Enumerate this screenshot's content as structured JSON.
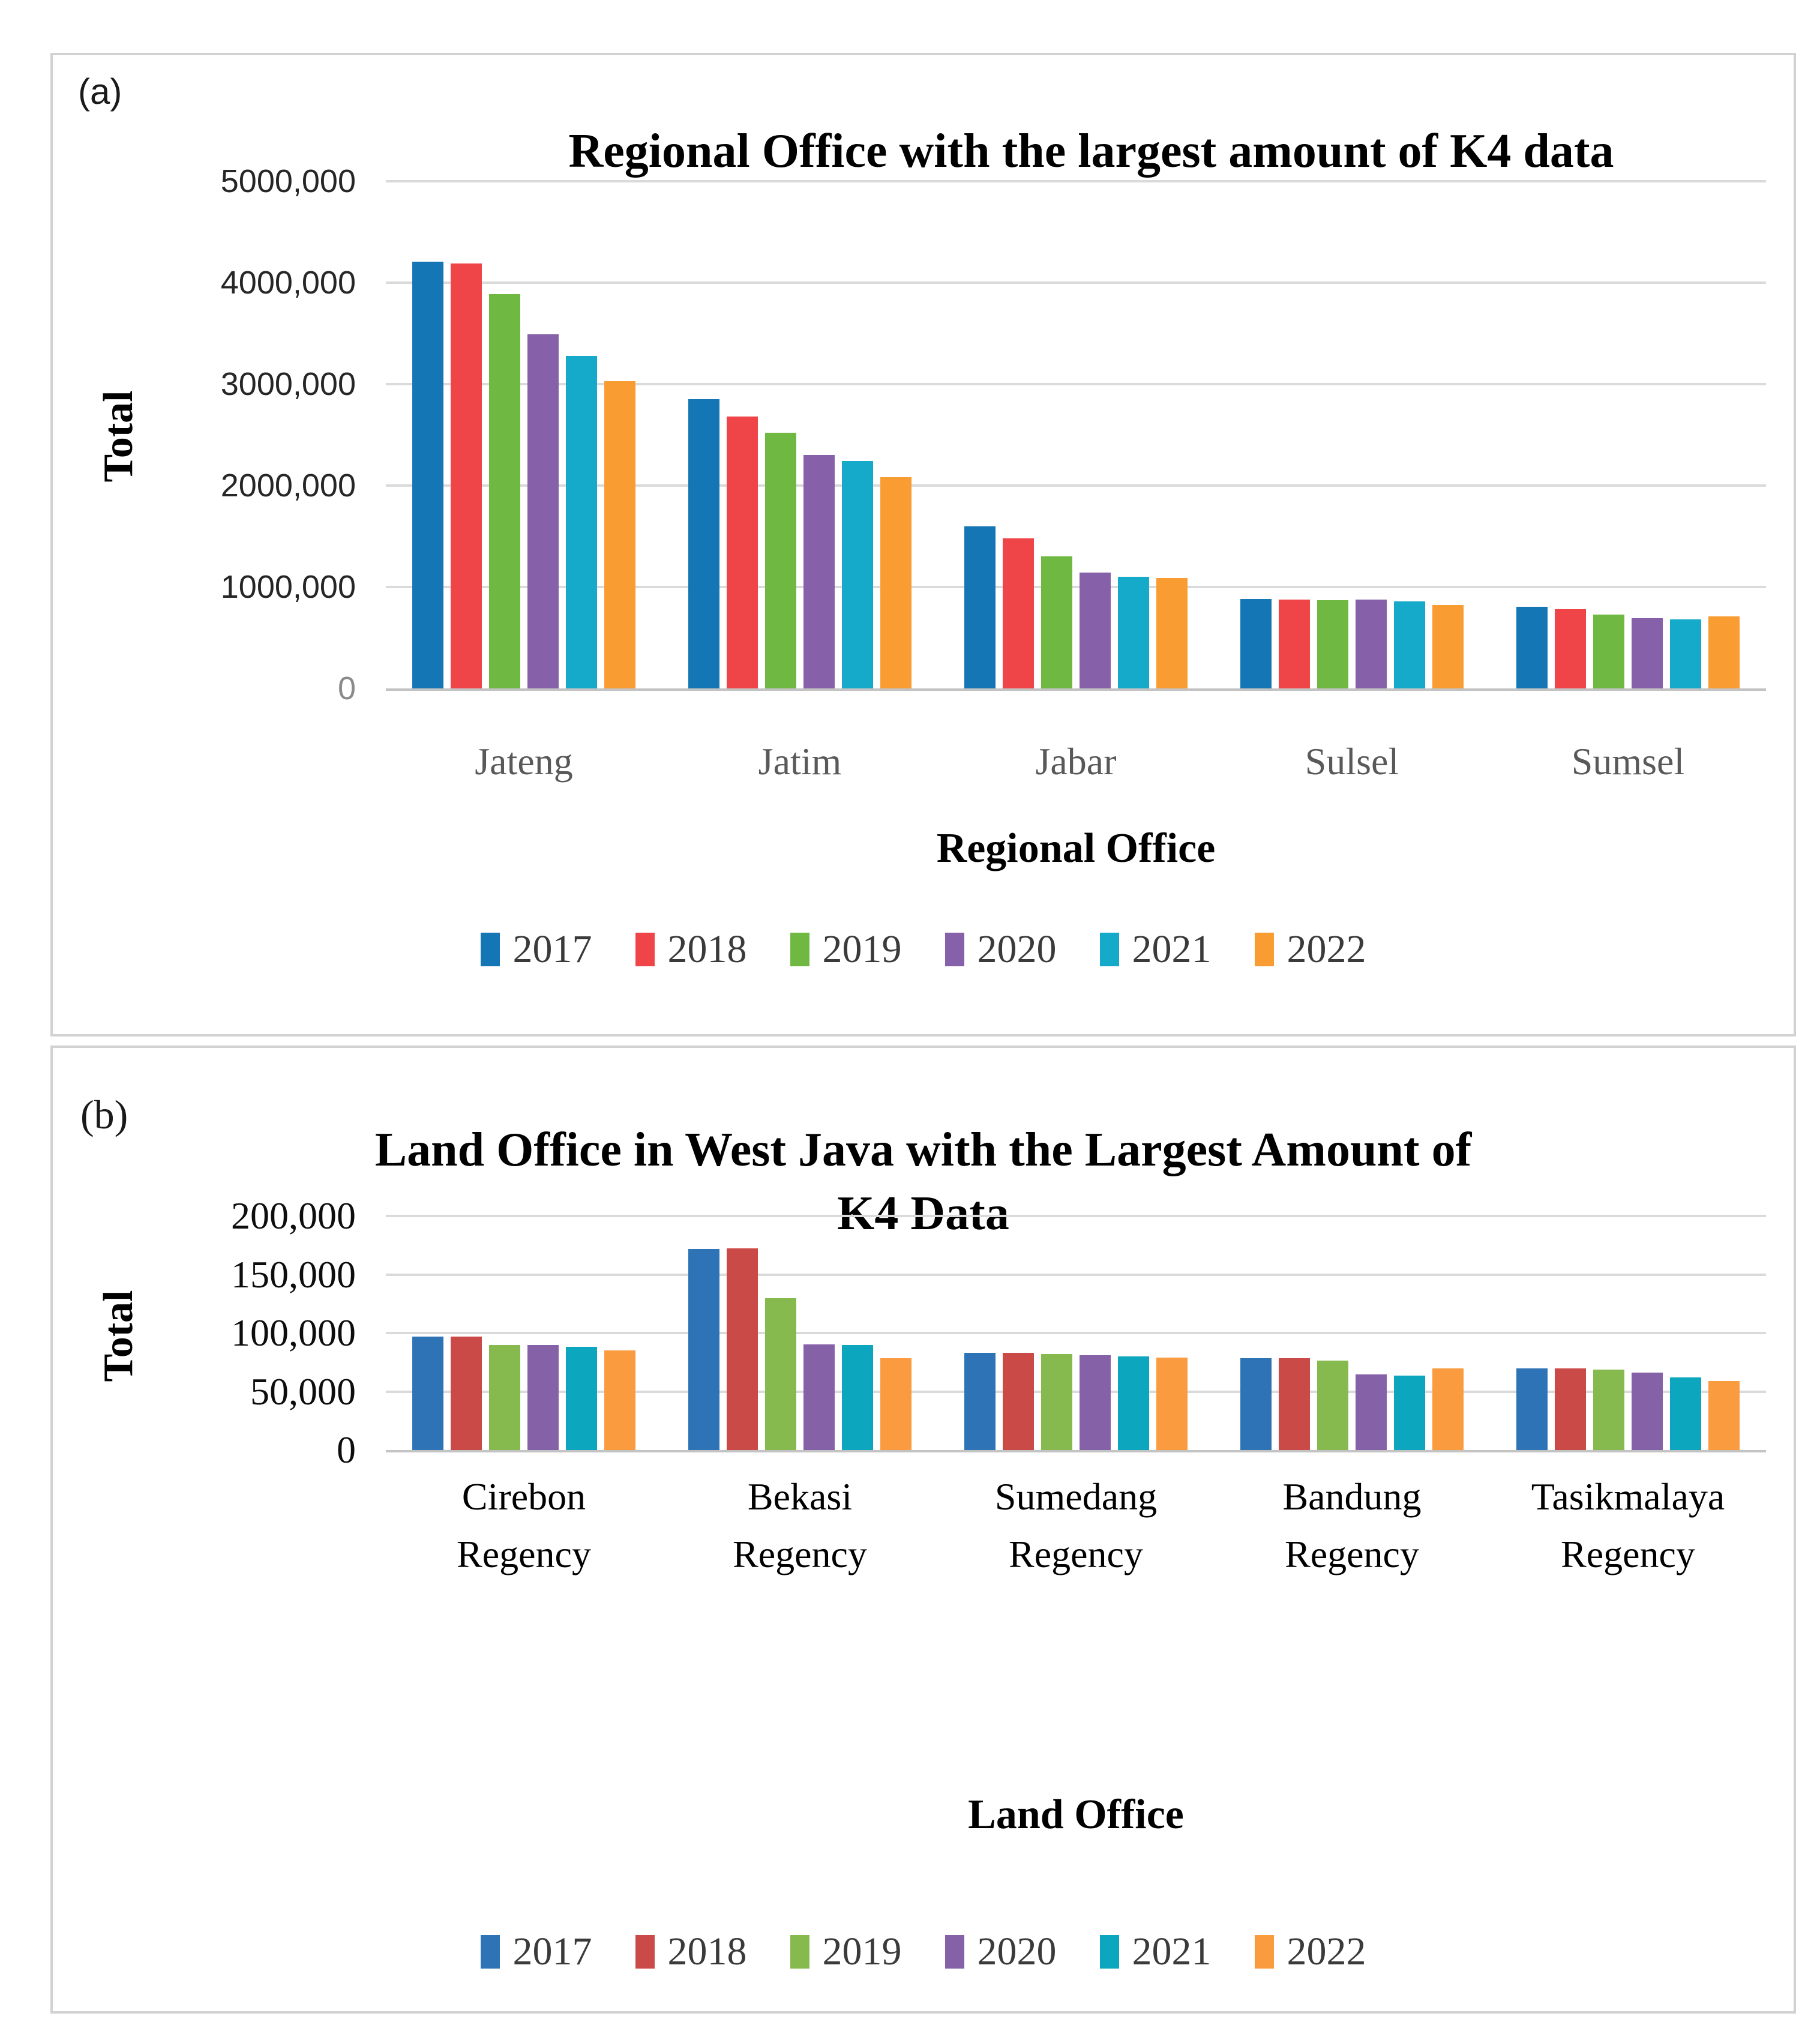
{
  "chart_data": [
    {
      "type": "bar",
      "panel_label": "(a)",
      "title": "Regional Office with the largest amount of K4 data",
      "title_lines": [
        "Regional Office with the largest amount of K4 data"
      ],
      "ylabel": "Total",
      "xlabel": "Regional Office",
      "ylim": [
        0,
        5000000
      ],
      "y_tick_labels": [
        "5000,000",
        "4000,000",
        "3000,000",
        "2000,000",
        "1000,000",
        "0"
      ],
      "grid": true,
      "legend_position": "bottom",
      "categories": [
        "Jateng",
        "Jatim",
        "Jabar",
        "Sulsel",
        "Sumsel"
      ],
      "series": [
        {
          "name": "2017",
          "color": "#1476b4",
          "values": [
            4210000,
            2850000,
            1600000,
            880000,
            805000
          ]
        },
        {
          "name": "2018",
          "color": "#f04548",
          "values": [
            4190000,
            2680000,
            1480000,
            876000,
            780000
          ]
        },
        {
          "name": "2019",
          "color": "#6fb842",
          "values": [
            3890000,
            2520000,
            1300000,
            872000,
            727000
          ]
        },
        {
          "name": "2020",
          "color": "#8660a8",
          "values": [
            3490000,
            2300000,
            1140000,
            878000,
            695000
          ]
        },
        {
          "name": "2021",
          "color": "#15aaca",
          "values": [
            3280000,
            2240000,
            1100000,
            856000,
            680000
          ]
        },
        {
          "name": "2022",
          "color": "#f99c31",
          "values": [
            3030000,
            2080000,
            1090000,
            821000,
            708000
          ]
        }
      ]
    },
    {
      "type": "bar",
      "panel_label": "(b)",
      "title": "Land Office in West Java with the Largest Amount of K4 Data",
      "title_lines": [
        "Land Office in West Java with the Largest Amount of",
        "K4 Data"
      ],
      "ylabel": "Total",
      "xlabel": "Land Office",
      "ylim": [
        0,
        200000
      ],
      "y_tick_labels": [
        "200,000",
        "150,000",
        "100,000",
        "50,000",
        "0"
      ],
      "grid": true,
      "legend_position": "bottom",
      "categories": [
        "Cirebon Regency",
        "Bekasi Regency",
        "Sumedang Regency",
        "Bandung Regency",
        "Tasikmalaya Regency"
      ],
      "series": [
        {
          "name": "2017",
          "color": "#2e73b5",
          "values": [
            97000,
            172000,
            83000,
            78500,
            69500
          ]
        },
        {
          "name": "2018",
          "color": "#ca4a47",
          "values": [
            97000,
            172500,
            83000,
            78500,
            69500
          ]
        },
        {
          "name": "2019",
          "color": "#86ba4f",
          "values": [
            90000,
            130000,
            82000,
            76500,
            68500
          ]
        },
        {
          "name": "2020",
          "color": "#8561a8",
          "values": [
            90000,
            90500,
            81000,
            64500,
            66000
          ]
        },
        {
          "name": "2021",
          "color": "#0ca7bf",
          "values": [
            88000,
            89500,
            80000,
            63500,
            62000
          ]
        },
        {
          "name": "2022",
          "color": "#f99b3e",
          "values": [
            85000,
            78500,
            79000,
            69500,
            59000
          ]
        }
      ]
    }
  ]
}
